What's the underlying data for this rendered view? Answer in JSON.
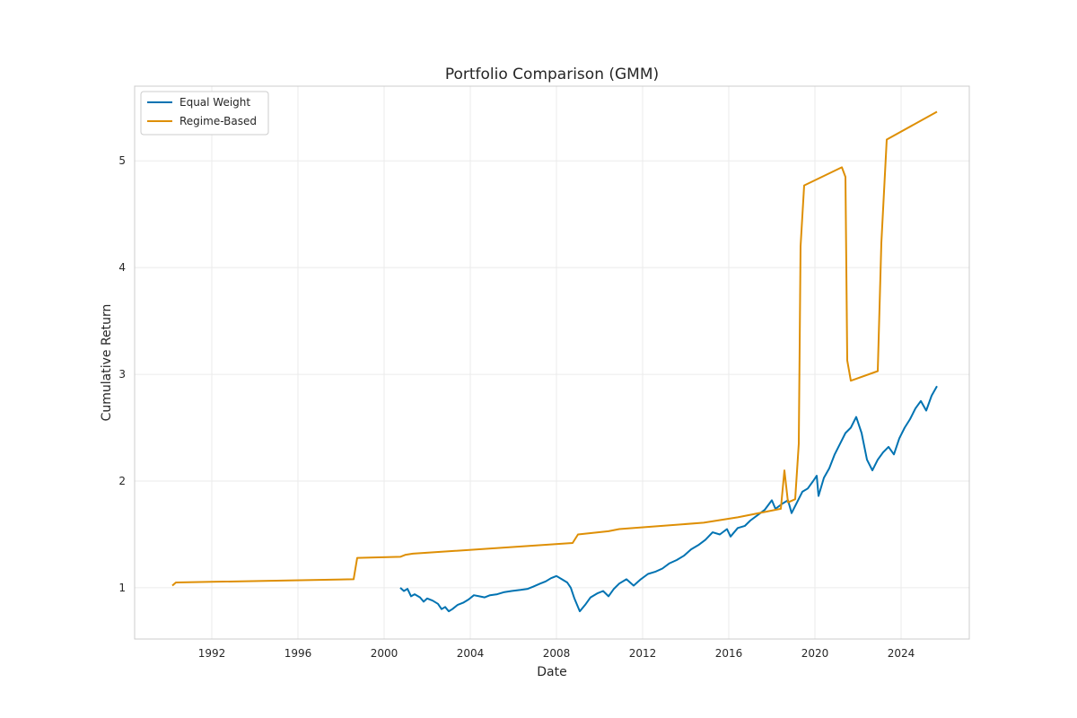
{
  "chart_data": {
    "type": "line",
    "title": "Portfolio Comparison (GMM)",
    "xlabel": "Date",
    "ylabel": "Cumulative Return",
    "x_ticks": [
      "1992",
      "1996",
      "2000",
      "2004",
      "2008",
      "2012",
      "2016",
      "2020",
      "2024"
    ],
    "y_ticks": [
      "1",
      "2",
      "3",
      "4",
      "5"
    ],
    "xlim": [
      "1988-06",
      "2027-03"
    ],
    "ylim": [
      0.52,
      5.7
    ],
    "grid": true,
    "legend_position": "top-left",
    "series": [
      {
        "name": "Equal Weight",
        "color": "#0173b2",
        "points": [
          [
            "2000-10",
            1.0
          ],
          [
            "2000-12",
            0.97
          ],
          [
            "2001-02",
            0.99
          ],
          [
            "2001-04",
            0.92
          ],
          [
            "2001-06",
            0.94
          ],
          [
            "2001-09",
            0.91
          ],
          [
            "2001-11",
            0.87
          ],
          [
            "2002-01",
            0.9
          ],
          [
            "2002-04",
            0.88
          ],
          [
            "2002-07",
            0.85
          ],
          [
            "2002-09",
            0.8
          ],
          [
            "2002-11",
            0.82
          ],
          [
            "2003-01",
            0.78
          ],
          [
            "2003-03",
            0.8
          ],
          [
            "2003-06",
            0.84
          ],
          [
            "2003-09",
            0.86
          ],
          [
            "2003-12",
            0.89
          ],
          [
            "2004-03",
            0.93
          ],
          [
            "2004-06",
            0.92
          ],
          [
            "2004-09",
            0.91
          ],
          [
            "2004-12",
            0.93
          ],
          [
            "2005-04",
            0.94
          ],
          [
            "2005-08",
            0.96
          ],
          [
            "2005-12",
            0.97
          ],
          [
            "2006-05",
            0.98
          ],
          [
            "2006-09",
            0.99
          ],
          [
            "2006-12",
            1.01
          ],
          [
            "2007-04",
            1.04
          ],
          [
            "2007-07",
            1.06
          ],
          [
            "2007-10",
            1.09
          ],
          [
            "2008-01",
            1.11
          ],
          [
            "2008-04",
            1.08
          ],
          [
            "2008-07",
            1.05
          ],
          [
            "2008-09",
            1.0
          ],
          [
            "2008-11",
            0.9
          ],
          [
            "2009-02",
            0.78
          ],
          [
            "2009-05",
            0.84
          ],
          [
            "2009-08",
            0.91
          ],
          [
            "2009-12",
            0.95
          ],
          [
            "2010-03",
            0.97
          ],
          [
            "2010-06",
            0.92
          ],
          [
            "2010-09",
            0.99
          ],
          [
            "2010-12",
            1.04
          ],
          [
            "2011-04",
            1.08
          ],
          [
            "2011-08",
            1.02
          ],
          [
            "2011-12",
            1.08
          ],
          [
            "2012-04",
            1.13
          ],
          [
            "2012-08",
            1.15
          ],
          [
            "2012-12",
            1.18
          ],
          [
            "2013-04",
            1.23
          ],
          [
            "2013-08",
            1.26
          ],
          [
            "2013-12",
            1.3
          ],
          [
            "2014-04",
            1.36
          ],
          [
            "2014-08",
            1.4
          ],
          [
            "2014-12",
            1.45
          ],
          [
            "2015-04",
            1.52
          ],
          [
            "2015-08",
            1.5
          ],
          [
            "2015-12",
            1.55
          ],
          [
            "2016-02",
            1.48
          ],
          [
            "2016-06",
            1.56
          ],
          [
            "2016-10",
            1.58
          ],
          [
            "2017-01",
            1.63
          ],
          [
            "2017-05",
            1.68
          ],
          [
            "2017-09",
            1.73
          ],
          [
            "2018-01",
            1.82
          ],
          [
            "2018-03",
            1.74
          ],
          [
            "2018-07",
            1.79
          ],
          [
            "2018-10",
            1.82
          ],
          [
            "2018-12",
            1.7
          ],
          [
            "2019-03",
            1.8
          ],
          [
            "2019-06",
            1.9
          ],
          [
            "2019-09",
            1.93
          ],
          [
            "2019-12",
            2.0
          ],
          [
            "2020-02",
            2.05
          ],
          [
            "2020-03",
            1.86
          ],
          [
            "2020-06",
            2.03
          ],
          [
            "2020-09",
            2.12
          ],
          [
            "2020-12",
            2.25
          ],
          [
            "2021-03",
            2.35
          ],
          [
            "2021-06",
            2.45
          ],
          [
            "2021-09",
            2.5
          ],
          [
            "2021-12",
            2.6
          ],
          [
            "2022-03",
            2.45
          ],
          [
            "2022-06",
            2.2
          ],
          [
            "2022-09",
            2.1
          ],
          [
            "2022-12",
            2.2
          ],
          [
            "2023-03",
            2.27
          ],
          [
            "2023-06",
            2.32
          ],
          [
            "2023-09",
            2.25
          ],
          [
            "2023-12",
            2.4
          ],
          [
            "2024-03",
            2.5
          ],
          [
            "2024-06",
            2.58
          ],
          [
            "2024-09",
            2.68
          ],
          [
            "2024-12",
            2.75
          ],
          [
            "2025-03",
            2.66
          ],
          [
            "2025-06",
            2.8
          ],
          [
            "2025-09",
            2.89
          ]
        ]
      },
      {
        "name": "Regime-Based",
        "color": "#de8f05",
        "points": [
          [
            "1990-03",
            1.02
          ],
          [
            "1990-05",
            1.05
          ],
          [
            "1998-08",
            1.08
          ],
          [
            "1998-10",
            1.28
          ],
          [
            "2000-10",
            1.29
          ],
          [
            "2001-01",
            1.31
          ],
          [
            "2001-05",
            1.32
          ],
          [
            "2008-10",
            1.42
          ],
          [
            "2009-01",
            1.5
          ],
          [
            "2010-06",
            1.53
          ],
          [
            "2010-12",
            1.55
          ],
          [
            "2014-11",
            1.61
          ],
          [
            "2016-06",
            1.66
          ],
          [
            "2018-06",
            1.74
          ],
          [
            "2018-08",
            2.1
          ],
          [
            "2018-10",
            1.8
          ],
          [
            "2019-02",
            1.83
          ],
          [
            "2019-04",
            2.35
          ],
          [
            "2019-05",
            4.2
          ],
          [
            "2019-07",
            4.77
          ],
          [
            "2021-04",
            4.94
          ],
          [
            "2021-06",
            4.85
          ],
          [
            "2021-07",
            3.13
          ],
          [
            "2021-09",
            2.94
          ],
          [
            "2022-12",
            3.03
          ],
          [
            "2023-02",
            4.23
          ],
          [
            "2023-05",
            5.2
          ],
          [
            "2025-09",
            5.46
          ]
        ]
      }
    ]
  }
}
